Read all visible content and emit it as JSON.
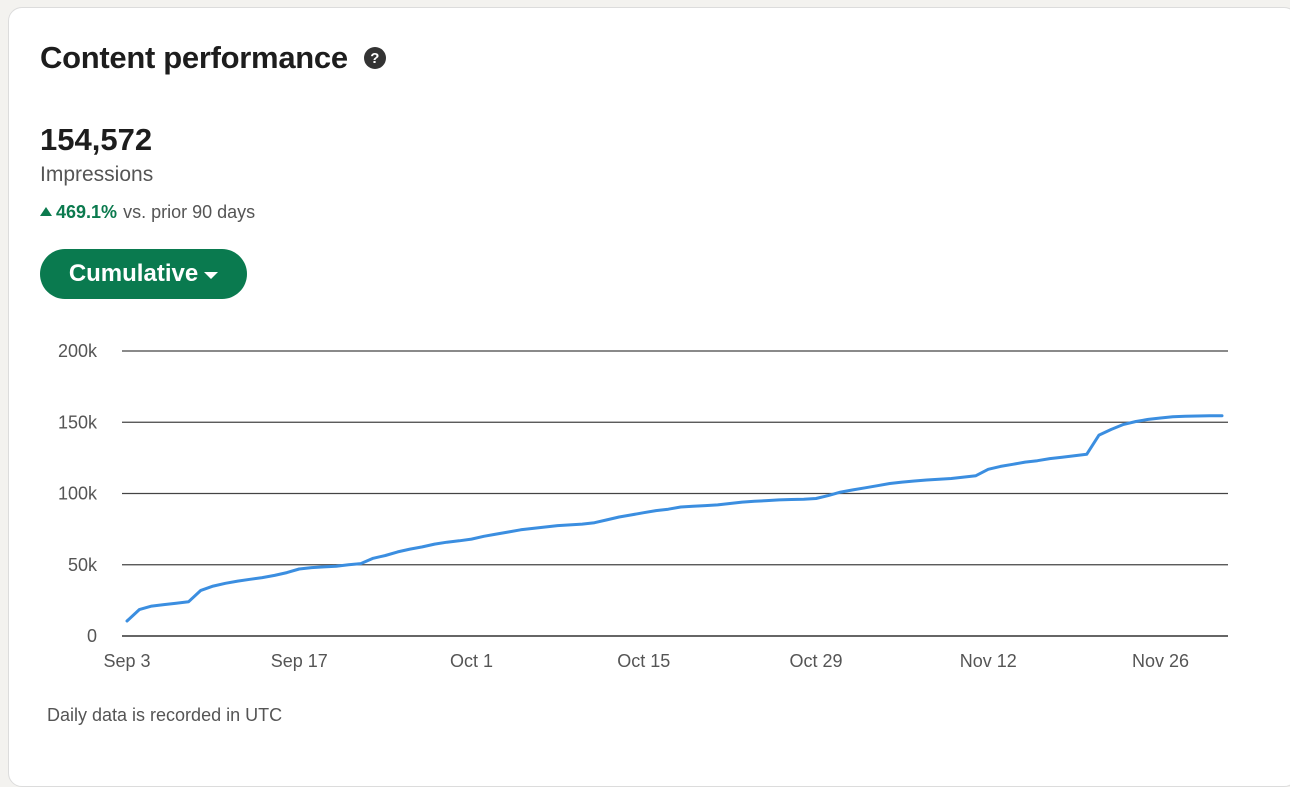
{
  "card": {
    "title": "Content performance",
    "help_icon": "question-circle-icon",
    "metric_value": "154,572",
    "metric_label": "Impressions",
    "change_pct": "469.1%",
    "change_suffix": "vs. prior 90 days",
    "change_direction_icon": "triangle-up-icon",
    "mode_button_label": "Cumulative",
    "footnote": "Daily data is recorded in UTC"
  },
  "colors": {
    "accent_green": "#0a7a4f",
    "line_blue": "#3b8ee0"
  },
  "chart_data": {
    "type": "line",
    "title": "",
    "xlabel": "",
    "ylabel": "",
    "ylim": [
      0,
      200000
    ],
    "y_ticks": [
      0,
      50000,
      100000,
      150000,
      200000
    ],
    "y_tick_labels": [
      "0",
      "50k",
      "100k",
      "150k",
      "200k"
    ],
    "x_ticks": [
      "2023-09-03",
      "2023-09-17",
      "2023-10-01",
      "2023-10-15",
      "2023-10-29",
      "2023-11-12",
      "2023-11-26"
    ],
    "x_tick_labels": [
      "Sep 3",
      "Sep 17",
      "Oct 1",
      "Oct 15",
      "Oct 29",
      "Nov 12",
      "Nov 26"
    ],
    "xlim": [
      "2023-09-03",
      "2023-12-01"
    ],
    "grid": true,
    "legend": "none",
    "series": [
      {
        "x": [
          "2023-09-03",
          "2023-09-04",
          "2023-09-05",
          "2023-09-06",
          "2023-09-07",
          "2023-09-08",
          "2023-09-09",
          "2023-09-10",
          "2023-09-11",
          "2023-09-12",
          "2023-09-13",
          "2023-09-14",
          "2023-09-15",
          "2023-09-16",
          "2023-09-17",
          "2023-09-18",
          "2023-09-19",
          "2023-09-20",
          "2023-09-21",
          "2023-09-22",
          "2023-09-23",
          "2023-09-24",
          "2023-09-25",
          "2023-09-26",
          "2023-09-27",
          "2023-09-28",
          "2023-09-29",
          "2023-09-30",
          "2023-10-01",
          "2023-10-02",
          "2023-10-03",
          "2023-10-04",
          "2023-10-05",
          "2023-10-06",
          "2023-10-07",
          "2023-10-08",
          "2023-10-09",
          "2023-10-10",
          "2023-10-11",
          "2023-10-12",
          "2023-10-13",
          "2023-10-14",
          "2023-10-15",
          "2023-10-16",
          "2023-10-17",
          "2023-10-18",
          "2023-10-19",
          "2023-10-20",
          "2023-10-21",
          "2023-10-22",
          "2023-10-23",
          "2023-10-24",
          "2023-10-25",
          "2023-10-26",
          "2023-10-27",
          "2023-10-28",
          "2023-10-29",
          "2023-10-30",
          "2023-10-31",
          "2023-11-01",
          "2023-11-02",
          "2023-11-03",
          "2023-11-04",
          "2023-11-05",
          "2023-11-06",
          "2023-11-07",
          "2023-11-08",
          "2023-11-09",
          "2023-11-10",
          "2023-11-11",
          "2023-11-12",
          "2023-11-13",
          "2023-11-14",
          "2023-11-15",
          "2023-11-16",
          "2023-11-17",
          "2023-11-18",
          "2023-11-19",
          "2023-11-20",
          "2023-11-21",
          "2023-11-22",
          "2023-11-23",
          "2023-11-24",
          "2023-11-25",
          "2023-11-26",
          "2023-11-27",
          "2023-11-28",
          "2023-11-29",
          "2023-11-30",
          "2023-12-01"
        ],
        "values": [
          10500,
          18500,
          21000,
          22000,
          23000,
          24000,
          32000,
          35000,
          37000,
          38500,
          39800,
          41000,
          42500,
          44500,
          47000,
          48000,
          48500,
          49000,
          50000,
          50800,
          54500,
          56500,
          59000,
          61000,
          62500,
          64500,
          65800,
          66800,
          68000,
          70000,
          71500,
          73000,
          74500,
          75500,
          76500,
          77500,
          78000,
          78500,
          79500,
          81500,
          83500,
          85000,
          86500,
          88000,
          89000,
          90500,
          91000,
          91500,
          92000,
          93000,
          94000,
          94500,
          95000,
          95500,
          95800,
          96000,
          96500,
          98500,
          101000,
          102500,
          104000,
          105500,
          107000,
          108000,
          108800,
          109500,
          110000,
          110500,
          111500,
          112500,
          117000,
          119000,
          120500,
          122000,
          123000,
          124500,
          125500,
          126500,
          127500,
          141000,
          145000,
          148500,
          150500,
          152000,
          153000,
          153800,
          154200,
          154400,
          154550,
          154572
        ]
      }
    ]
  }
}
